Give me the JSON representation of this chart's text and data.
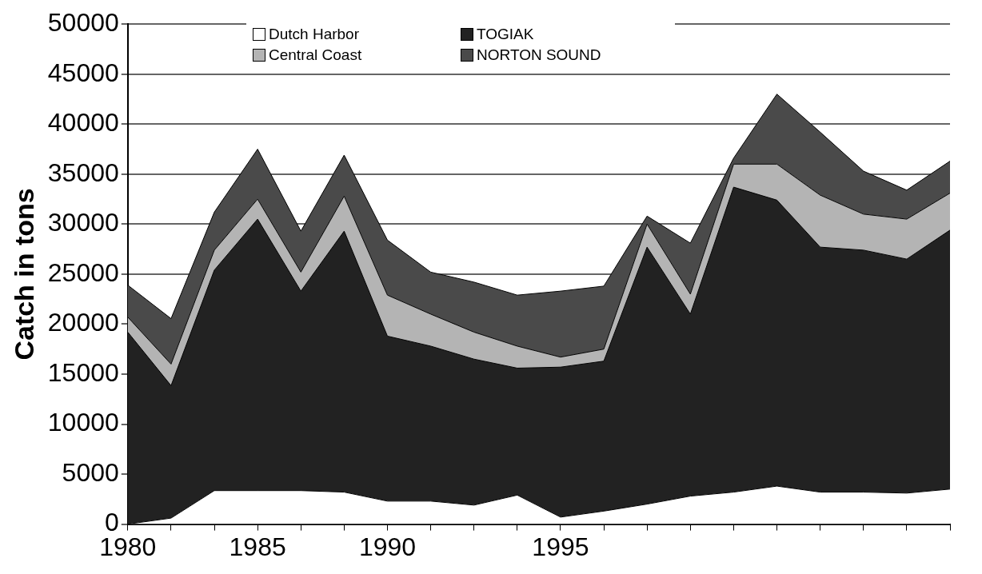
{
  "chart_data": {
    "type": "area",
    "ylabel": "Catch in tons",
    "stacked": true,
    "categories": [
      "1980",
      null,
      null,
      "1985",
      null,
      null,
      "1990",
      null,
      null,
      null,
      "1995",
      null,
      null,
      null,
      null,
      null,
      null,
      null,
      null,
      null
    ],
    "series": [
      {
        "name": "Dutch Harbor",
        "color": "#ffffff",
        "values": [
          0,
          600,
          3350,
          3350,
          3350,
          3200,
          2300,
          2300,
          1900,
          2900,
          700,
          1300,
          2000,
          2800,
          3200,
          3800,
          3200,
          3200,
          3100,
          3500
        ]
      },
      {
        "name": "TOGIAK",
        "color": "#222222",
        "values": [
          19200,
          13250,
          22050,
          27150,
          19950,
          26100,
          16500,
          15500,
          14600,
          12700,
          15000,
          15000,
          25700,
          18200,
          30500,
          28600,
          24500,
          24200,
          23400,
          25900
        ]
      },
      {
        "name": "Central Coast",
        "color": "#b4b4b4",
        "values": [
          1500,
          2150,
          2000,
          2000,
          1900,
          3500,
          4100,
          3200,
          2700,
          2200,
          1000,
          1200,
          2300,
          2000,
          2300,
          3600,
          5200,
          3600,
          4000,
          3700
        ]
      },
      {
        "name": "NORTON SOUND",
        "color": "#4a4a4a",
        "values": [
          3200,
          4550,
          3800,
          5000,
          4100,
          4100,
          5500,
          4200,
          5000,
          5100,
          6600,
          6300,
          800,
          5100,
          600,
          7000,
          6300,
          4300,
          2900,
          3200
        ]
      }
    ],
    "ylim": [
      0,
      50000
    ],
    "yticks": [
      0,
      5000,
      10000,
      15000,
      20000,
      25000,
      30000,
      35000,
      40000,
      45000,
      50000
    ],
    "grid": "y",
    "legend": "top left"
  }
}
